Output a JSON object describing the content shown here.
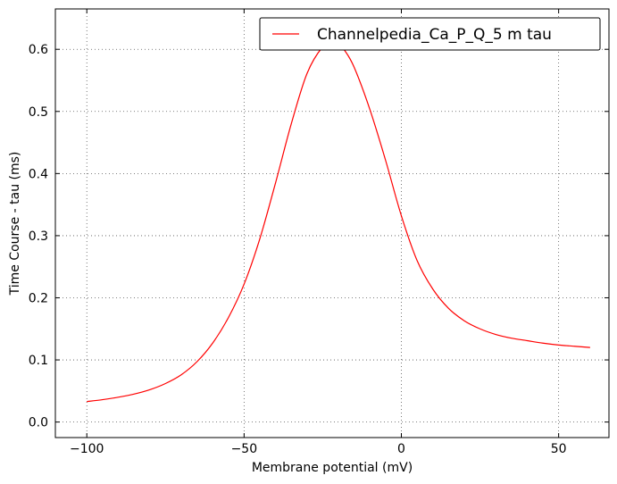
{
  "chart_data": {
    "type": "line",
    "title": "",
    "xlabel": "Membrane potential (mV)",
    "ylabel": "Time Course - tau (ms)",
    "xlim": [
      -110,
      66
    ],
    "ylim": [
      -0.025,
      0.665
    ],
    "xticks": [
      -100,
      -50,
      0,
      50
    ],
    "xtick_labels": [
      "−100",
      "−50",
      "0",
      "50"
    ],
    "yticks": [
      0.0,
      0.1,
      0.2,
      0.3,
      0.4,
      0.5,
      0.6
    ],
    "ytick_labels": [
      "0.0",
      "0.1",
      "0.2",
      "0.3",
      "0.4",
      "0.5",
      "0.6"
    ],
    "grid": true,
    "legend": "top-right",
    "series": [
      {
        "name": "Channelpedia_Ca_P_Q_5 m tau",
        "color": "#ff0000",
        "x": [
          -100,
          -95,
          -90,
          -85,
          -80,
          -75,
          -70,
          -65,
          -60,
          -55,
          -50,
          -45,
          -40,
          -35,
          -30,
          -25,
          -22,
          -20,
          -18,
          -15,
          -10,
          -5,
          0,
          5,
          10,
          15,
          20,
          25,
          30,
          35,
          40,
          45,
          50,
          55,
          60
        ],
        "y": [
          0.033,
          0.036,
          0.04,
          0.045,
          0.052,
          0.062,
          0.076,
          0.097,
          0.127,
          0.168,
          0.222,
          0.295,
          0.385,
          0.48,
          0.561,
          0.604,
          0.609,
          0.608,
          0.598,
          0.571,
          0.503,
          0.421,
          0.332,
          0.26,
          0.214,
          0.183,
          0.163,
          0.15,
          0.141,
          0.135,
          0.131,
          0.127,
          0.124,
          0.122,
          0.12
        ]
      }
    ]
  }
}
